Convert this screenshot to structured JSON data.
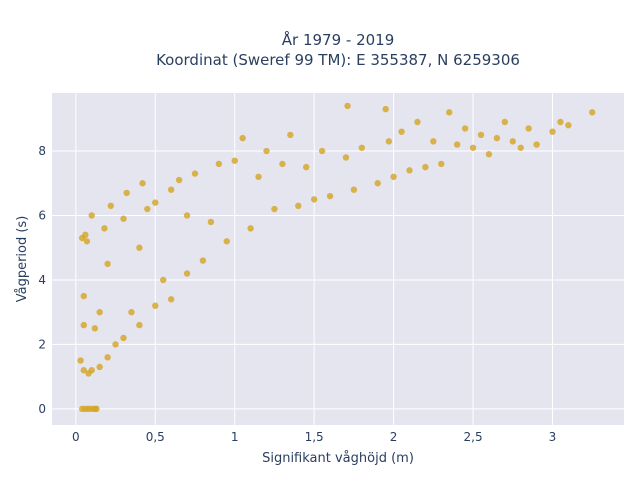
{
  "chart_data": {
    "type": "scatter",
    "title_lines": [
      "År 1979 - 2019",
      "Koordinat (Sweref 99 TM): E 355387, N 6259306"
    ],
    "xlabel": "Signifikant våghöjd (m)",
    "ylabel": "Vågperiod (s)",
    "xlim": [
      -0.15,
      3.45
    ],
    "ylim": [
      -0.5,
      9.8
    ],
    "x_ticks": [
      0,
      0.5,
      1,
      1.5,
      2,
      2.5,
      3
    ],
    "x_tick_labels": [
      "0",
      "0,5",
      "1",
      "1,5",
      "2",
      "2,5",
      "3"
    ],
    "y_ticks": [
      0,
      2,
      4,
      6,
      8
    ],
    "y_tick_labels": [
      "0",
      "2",
      "4",
      "6",
      "8"
    ],
    "grid": true,
    "marker_color": "#d4a420",
    "plot_background": "#e5e5f0",
    "series": [
      {
        "points": [
          [
            0.03,
            1.5
          ],
          [
            0.05,
            1.2
          ],
          [
            0.05,
            2.6
          ],
          [
            0.05,
            3.5
          ],
          [
            0.04,
            5.3
          ],
          [
            0.06,
            5.4
          ],
          [
            0.07,
            5.2
          ],
          [
            0.08,
            1.1
          ],
          [
            0.1,
            1.2
          ],
          [
            0.1,
            6.0
          ],
          [
            0.12,
            2.5
          ],
          [
            0.15,
            1.3
          ],
          [
            0.15,
            3.0
          ],
          [
            0.18,
            5.6
          ],
          [
            0.2,
            1.6
          ],
          [
            0.2,
            4.5
          ],
          [
            0.22,
            6.3
          ],
          [
            0.25,
            2.0
          ],
          [
            0.3,
            2.2
          ],
          [
            0.3,
            5.9
          ],
          [
            0.32,
            6.7
          ],
          [
            0.35,
            3.0
          ],
          [
            0.4,
            2.6
          ],
          [
            0.4,
            5.0
          ],
          [
            0.42,
            7.0
          ],
          [
            0.45,
            6.2
          ],
          [
            0.5,
            3.2
          ],
          [
            0.5,
            6.4
          ],
          [
            0.55,
            4.0
          ],
          [
            0.6,
            3.4
          ],
          [
            0.6,
            6.8
          ],
          [
            0.65,
            7.1
          ],
          [
            0.7,
            4.2
          ],
          [
            0.7,
            6.0
          ],
          [
            0.75,
            7.3
          ],
          [
            0.8,
            4.6
          ],
          [
            0.85,
            5.8
          ],
          [
            0.9,
            7.6
          ],
          [
            0.95,
            5.2
          ],
          [
            1.0,
            7.7
          ],
          [
            1.05,
            8.4
          ],
          [
            1.1,
            5.6
          ],
          [
            1.15,
            7.2
          ],
          [
            1.2,
            8.0
          ],
          [
            1.25,
            6.2
          ],
          [
            1.3,
            7.6
          ],
          [
            1.35,
            8.5
          ],
          [
            1.4,
            6.3
          ],
          [
            1.45,
            7.5
          ],
          [
            1.5,
            6.5
          ],
          [
            1.55,
            8.0
          ],
          [
            1.6,
            6.6
          ],
          [
            1.7,
            7.8
          ],
          [
            1.75,
            6.8
          ],
          [
            1.8,
            8.1
          ],
          [
            1.9,
            7.0
          ],
          [
            1.95,
            9.3
          ],
          [
            1.97,
            8.3
          ],
          [
            2.0,
            7.2
          ],
          [
            2.05,
            8.6
          ],
          [
            2.1,
            7.4
          ],
          [
            2.15,
            8.9
          ],
          [
            2.2,
            7.5
          ],
          [
            2.25,
            8.3
          ],
          [
            2.3,
            7.6
          ],
          [
            2.35,
            9.2
          ],
          [
            2.4,
            8.2
          ],
          [
            2.45,
            8.7
          ],
          [
            2.5,
            8.1
          ],
          [
            2.55,
            8.5
          ],
          [
            2.6,
            7.9
          ],
          [
            2.65,
            8.4
          ],
          [
            2.7,
            8.9
          ],
          [
            2.75,
            8.3
          ],
          [
            2.8,
            8.1
          ],
          [
            2.85,
            8.7
          ],
          [
            2.9,
            8.2
          ],
          [
            3.0,
            8.6
          ],
          [
            3.05,
            8.9
          ],
          [
            3.1,
            8.8
          ],
          [
            3.25,
            9.2
          ],
          [
            1.71,
            9.4
          ],
          [
            0.04,
            0.0
          ],
          [
            0.06,
            0.0
          ],
          [
            0.08,
            0.0
          ],
          [
            0.1,
            0.0
          ],
          [
            0.12,
            0.0
          ],
          [
            0.13,
            0.0
          ]
        ]
      }
    ]
  }
}
